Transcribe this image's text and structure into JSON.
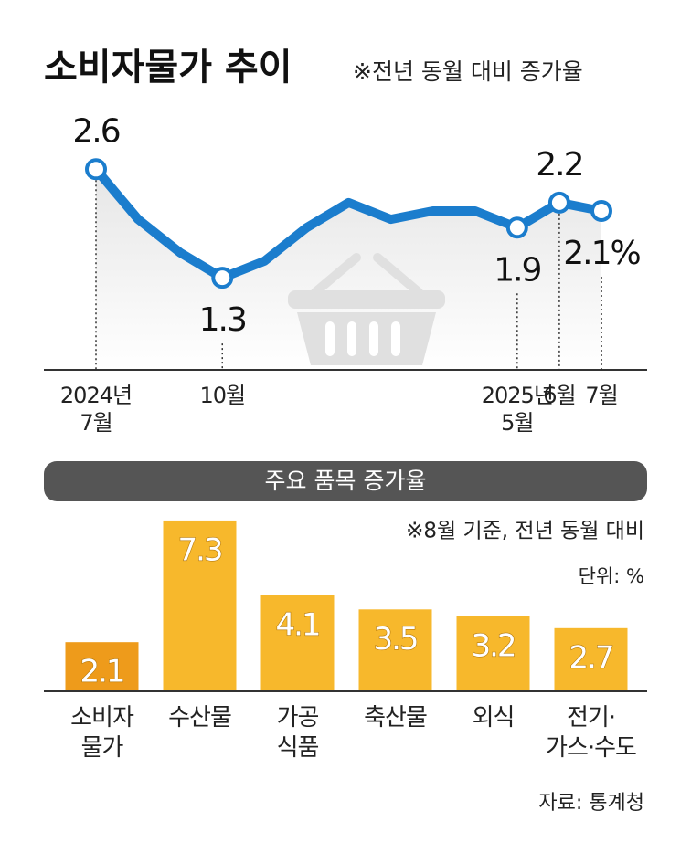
{
  "chart_data": [
    {
      "type": "line",
      "title": "소비자물가 추이",
      "subtitle": "※전년 동월 대비 증가율",
      "categories": [
        "2024년\n7월",
        null,
        null,
        "10월",
        null,
        null,
        null,
        null,
        null,
        null,
        "2025년\n5월",
        "6월",
        "7월"
      ],
      "values": [
        2.6,
        2.0,
        1.6,
        1.3,
        1.5,
        1.9,
        2.2,
        2.0,
        2.1,
        2.1,
        1.9,
        2.2,
        2.1
      ],
      "value_labels": [
        "2.6",
        null,
        null,
        "1.3",
        null,
        null,
        null,
        null,
        null,
        null,
        "1.9",
        "2.2",
        "2.1%"
      ],
      "color": "#1b7dcd",
      "ylim": [
        0,
        3.5
      ]
    },
    {
      "type": "bar",
      "title": "주요 품목 증가율",
      "subtitle": "※8월 기준, 전년 동월 대비",
      "unit": "단위: %",
      "categories": [
        "소비자\n물가",
        "수산물",
        "가공\n식품",
        "축산물",
        "외식",
        "전기·\n가스·수도"
      ],
      "values": [
        2.1,
        7.3,
        4.1,
        3.5,
        3.2,
        2.7
      ],
      "colors": [
        "#ee9b1b",
        "#f7b82c",
        "#f7b82c",
        "#f7b82c",
        "#f7b82c",
        "#f7b82c"
      ],
      "ylim": [
        0,
        8
      ]
    }
  ],
  "source": "자료: 통계청"
}
